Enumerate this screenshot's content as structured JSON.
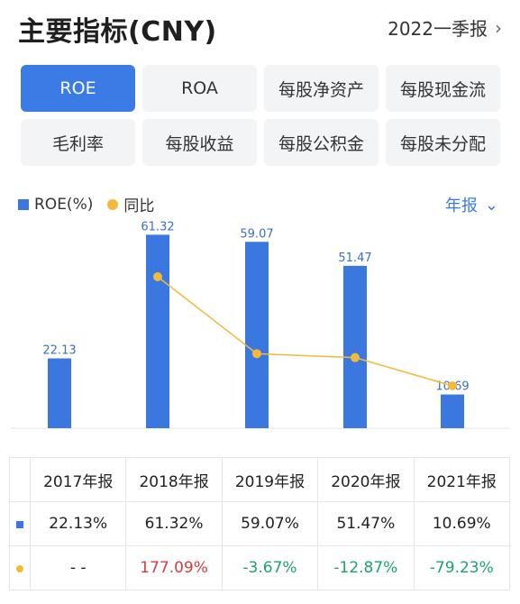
{
  "header": {
    "title": "主要指标(CNY)",
    "period": "2022一季报"
  },
  "tabs": [
    "ROE",
    "ROA",
    "每股净资产",
    "每股现金流",
    "毛利率",
    "每股收益",
    "每股公积金",
    "每股未分配"
  ],
  "active_tab": 0,
  "legend": {
    "bar_label": "ROE(%)",
    "line_label": "同比"
  },
  "annual_label": "年报",
  "chart_data": {
    "type": "bar",
    "categories": [
      "2017年报",
      "2018年报",
      "2019年报",
      "2020年报",
      "2021年报"
    ],
    "series": [
      {
        "name": "ROE(%)",
        "values": [
          22.13,
          61.32,
          59.07,
          51.47,
          10.69
        ],
        "color": "#3a78e0"
      },
      {
        "name": "同比",
        "values": [
          null,
          177.09,
          -3.67,
          -12.87,
          -79.23
        ],
        "color": "#f2b93b"
      }
    ]
  },
  "table": {
    "headers": [
      "2017年报",
      "2018年报",
      "2019年报",
      "2020年报",
      "2021年报"
    ],
    "roe": [
      "22.13%",
      "61.32%",
      "59.07%",
      "51.47%",
      "10.69%"
    ],
    "yoy": [
      "- -",
      "177.09%",
      "-3.67%",
      "-12.87%",
      "-79.23%"
    ]
  },
  "colors": {
    "accent": "#3b7be6",
    "bar": "#3a78e0",
    "line": "#f2b93b",
    "up": "#d93a3a",
    "down": "#1ea36b"
  }
}
